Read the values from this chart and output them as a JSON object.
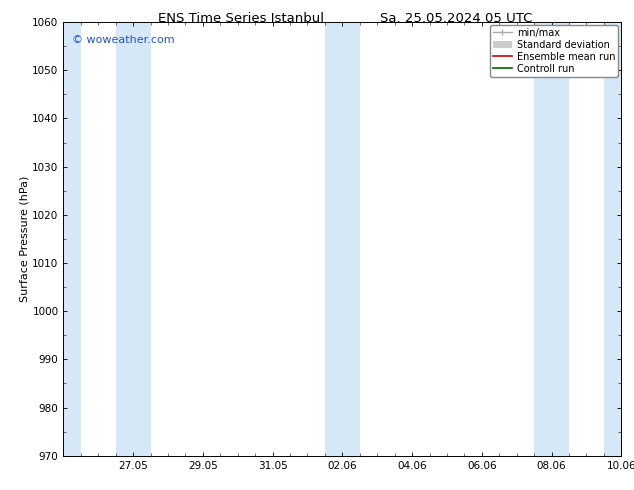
{
  "title_left": "ENS Time Series Istanbul",
  "title_right": "Sa. 25.05.2024 05 UTC",
  "ylabel": "Surface Pressure (hPa)",
  "ylim": [
    970,
    1060
  ],
  "yticks": [
    970,
    980,
    990,
    1000,
    1010,
    1020,
    1030,
    1040,
    1050,
    1060
  ],
  "x_tick_labels": [
    "27.05",
    "29.05",
    "31.05",
    "02.06",
    "04.06",
    "06.06",
    "08.06",
    "10.06"
  ],
  "xlim_start": 0.0,
  "xlim_end": 16.0,
  "x_minor_count": 4,
  "shaded_bands": [
    {
      "xstart": 0.0,
      "xend": 0.5
    },
    {
      "xstart": 1.5,
      "xend": 2.5
    },
    {
      "xstart": 7.5,
      "xend": 8.5
    },
    {
      "xstart": 13.5,
      "xend": 14.5
    },
    {
      "xstart": 15.5,
      "xend": 16.0
    }
  ],
  "band_color": "#d6e8f7",
  "watermark": "© woweather.com",
  "watermark_color": "#2255cc",
  "background_color": "#ffffff",
  "legend_items": [
    {
      "label": "min/max",
      "color": "#aaaaaa",
      "style": "line_with_caps"
    },
    {
      "label": "Standard deviation",
      "color": "#cccccc",
      "style": "band"
    },
    {
      "label": "Ensemble mean run",
      "color": "#cc0000",
      "style": "line"
    },
    {
      "label": "Controll run",
      "color": "#006600",
      "style": "line"
    }
  ],
  "title_fontsize": 9.5,
  "axis_label_fontsize": 8,
  "tick_fontsize": 7.5,
  "legend_fontsize": 7,
  "watermark_fontsize": 8
}
